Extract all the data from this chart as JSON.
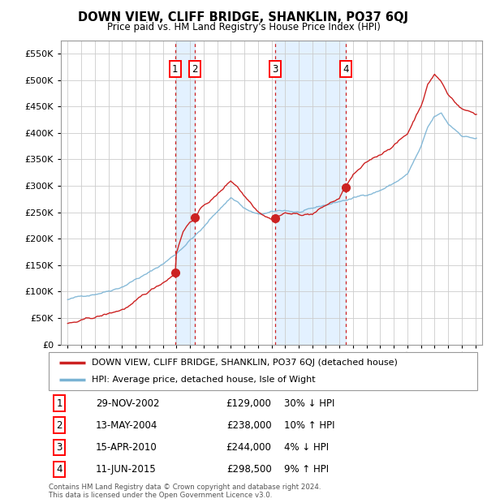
{
  "title": "DOWN VIEW, CLIFF BRIDGE, SHANKLIN, PO37 6QJ",
  "subtitle": "Price paid vs. HM Land Registry's House Price Index (HPI)",
  "legend_line1": "DOWN VIEW, CLIFF BRIDGE, SHANKLIN, PO37 6QJ (detached house)",
  "legend_line2": "HPI: Average price, detached house, Isle of Wight",
  "footer1": "Contains HM Land Registry data © Crown copyright and database right 2024.",
  "footer2": "This data is licensed under the Open Government Licence v3.0.",
  "transactions": [
    {
      "num": 1,
      "date": "29-NOV-2002",
      "price": 129000,
      "pct": "30%",
      "dir": "↓",
      "year": 2002.91
    },
    {
      "num": 2,
      "date": "13-MAY-2004",
      "price": 238000,
      "pct": "10%",
      "dir": "↑",
      "year": 2004.37
    },
    {
      "num": 3,
      "date": "15-APR-2010",
      "price": 244000,
      "pct": "4%",
      "dir": "↓",
      "year": 2010.29
    },
    {
      "num": 4,
      "date": "11-JUN-2015",
      "price": 298500,
      "pct": "9%",
      "dir": "↑",
      "year": 2015.45
    }
  ],
  "hpi_color": "#7ab3d4",
  "price_color": "#cc2222",
  "vline_color": "#cc2222",
  "shade_color": "#ddeeff",
  "ylim": [
    0,
    575000
  ],
  "yticks": [
    0,
    50000,
    100000,
    150000,
    200000,
    250000,
    300000,
    350000,
    400000,
    450000,
    500000,
    550000
  ],
  "xlim_left": 1994.5,
  "xlim_right": 2025.5
}
